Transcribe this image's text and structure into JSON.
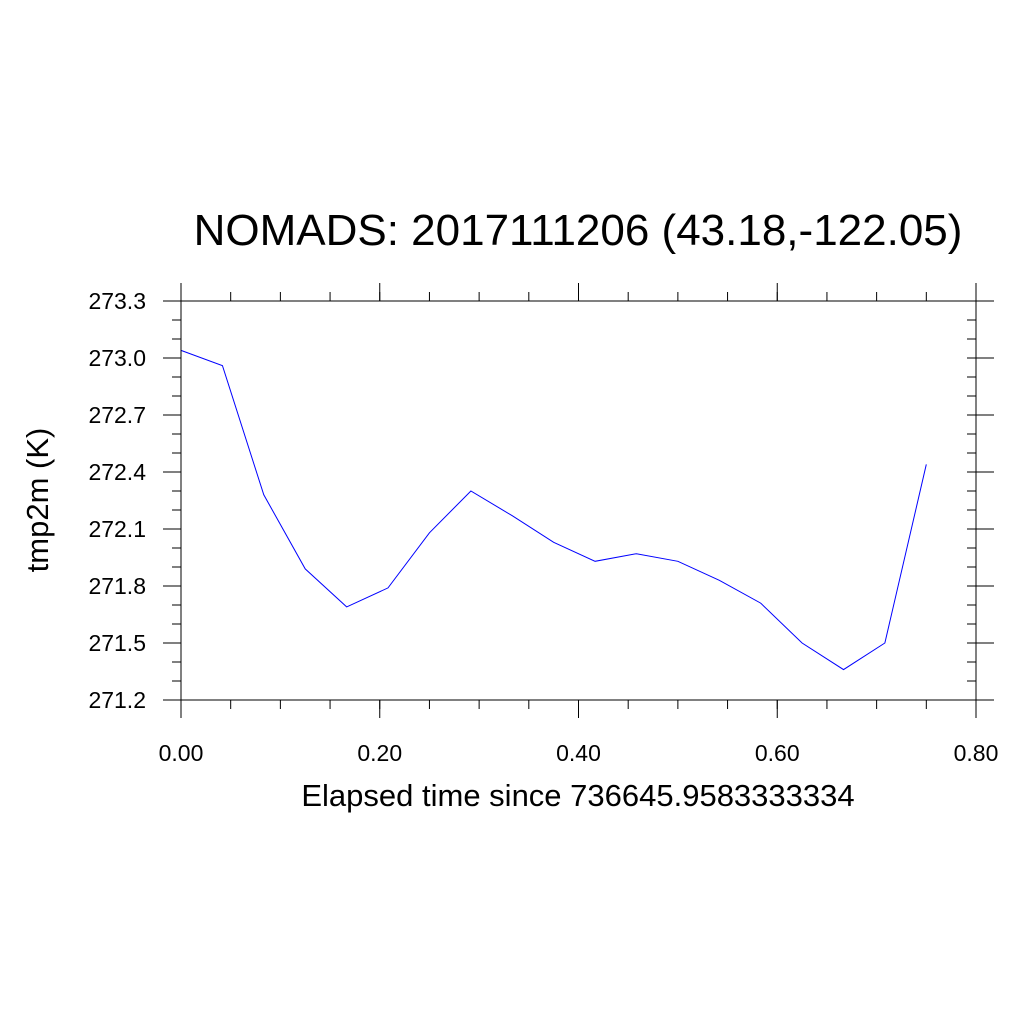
{
  "chart_data": {
    "type": "line",
    "title": "NOMADS: 2017111206 (43.18,-122.05)",
    "xlabel": "Elapsed time since 736645.9583333334",
    "ylabel": "tmp2m (K)",
    "xlim": [
      0.0,
      0.8
    ],
    "ylim": [
      271.2,
      273.3
    ],
    "xticks": [
      0.0,
      0.2,
      0.4,
      0.6,
      0.8
    ],
    "xtick_labels": [
      "0.00",
      "0.20",
      "0.40",
      "0.60",
      "0.80"
    ],
    "yticks": [
      271.2,
      271.5,
      271.8,
      272.1,
      272.4,
      272.7,
      273.0,
      273.3
    ],
    "ytick_labels": [
      "271.2",
      "271.5",
      "271.8",
      "272.1",
      "272.4",
      "272.7",
      "273.0",
      "273.3"
    ],
    "x_minor_step": 0.05,
    "y_minor_step": 0.1,
    "grid": false,
    "legend": "none",
    "series": [
      {
        "color": "#0000ff",
        "x": [
          0.0,
          0.0417,
          0.0833,
          0.125,
          0.1667,
          0.2083,
          0.25,
          0.2917,
          0.3333,
          0.375,
          0.4167,
          0.4583,
          0.5,
          0.5417,
          0.5833,
          0.625,
          0.6667,
          0.7083,
          0.75
        ],
        "y": [
          273.04,
          272.96,
          272.28,
          271.89,
          271.69,
          271.79,
          272.08,
          272.3,
          272.17,
          272.03,
          271.93,
          271.97,
          271.93,
          271.83,
          271.71,
          271.5,
          271.36,
          271.5,
          272.44
        ]
      }
    ]
  }
}
